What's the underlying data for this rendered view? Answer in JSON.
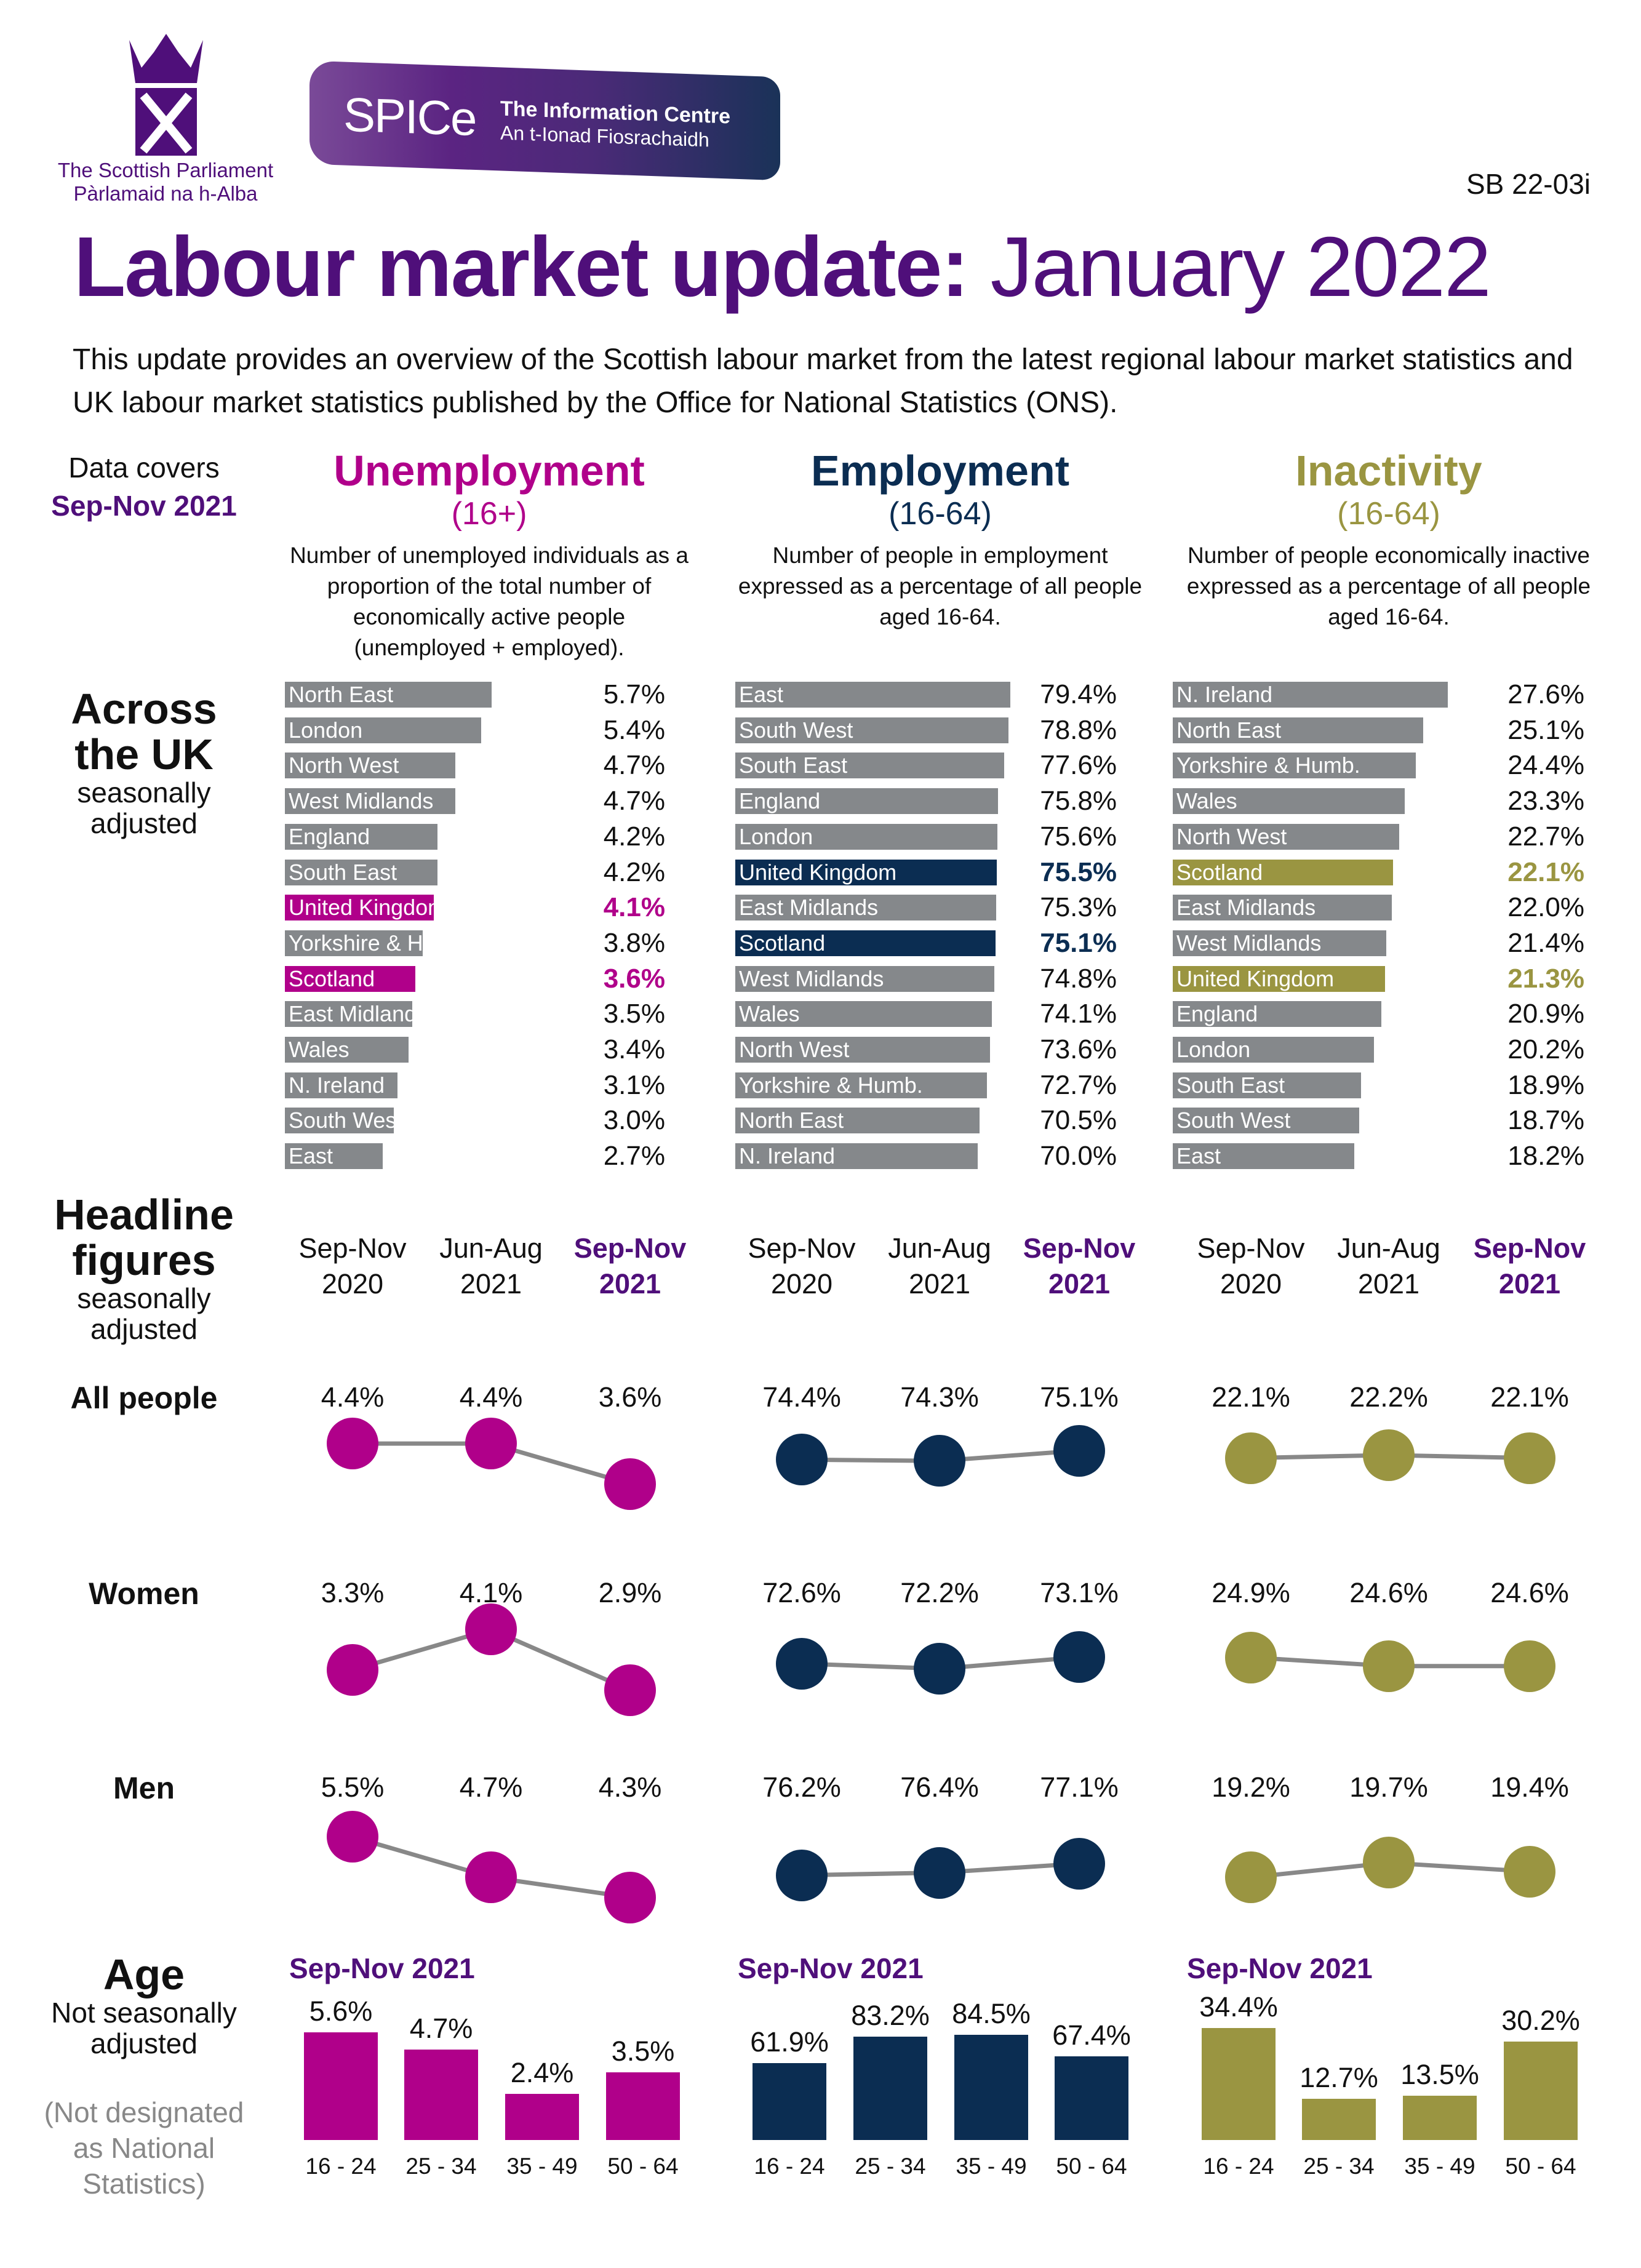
{
  "header": {
    "logo_line1": "The Scottish Parliament",
    "logo_line2": "Pàrlamaid na h-Alba",
    "spice_name": "SPICe",
    "spice_line1": "The Information Centre",
    "spice_line2": "An t-Ionad Fiosrachaidh",
    "reference": "SB 22-03i",
    "title_bold": "Labour market update:",
    "title_light": " January 2022",
    "intro": "This update provides an overview of the Scottish labour market from the latest regional labour market statistics and UK labour market statistics published by the Office for National Statistics (ONS)."
  },
  "colors": {
    "unemployment": "#b0008a",
    "employment": "#0b2d52",
    "inactivity": "#9a9541",
    "grey": "#85888b",
    "purple": "#4f0f7a"
  },
  "data_covers": {
    "label": "Data covers",
    "period": "Sep-Nov 2021"
  },
  "columns": [
    {
      "title": "Unemployment",
      "sub": "(16+)",
      "desc": "Number of unemployed individuals as a proportion of the total number of economically active people (unemployed + employed)."
    },
    {
      "title": "Employment",
      "sub": "(16-64)",
      "desc": "Number of people in employment expressed as a percentage of all people aged 16-64."
    },
    {
      "title": "Inactivity",
      "sub": "(16-64)",
      "desc": "Number of people economically inactive expressed as a percentage of all people aged 16-64."
    }
  ],
  "across": {
    "title1": "Across",
    "title2": "the UK",
    "note1": "seasonally",
    "note2": "adjusted"
  },
  "regions": [
    [
      [
        "North East",
        5.7
      ],
      [
        "London",
        5.4
      ],
      [
        "North West",
        4.7
      ],
      [
        "West Midlands",
        4.7
      ],
      [
        "England",
        4.2
      ],
      [
        "South East",
        4.2
      ],
      [
        "United Kingdom",
        4.1
      ],
      [
        "Yorkshire & Humb.",
        3.8
      ],
      [
        "Scotland",
        3.6
      ],
      [
        "East Midlands",
        3.5
      ],
      [
        "Wales",
        3.4
      ],
      [
        "N. Ireland",
        3.1
      ],
      [
        "South West",
        3.0
      ],
      [
        "East",
        2.7
      ]
    ],
    [
      [
        "East",
        79.4
      ],
      [
        "South West",
        78.8
      ],
      [
        "South East",
        77.6
      ],
      [
        "England",
        75.8
      ],
      [
        "London",
        75.6
      ],
      [
        "United Kingdom",
        75.5
      ],
      [
        "East Midlands",
        75.3
      ],
      [
        "Scotland",
        75.1
      ],
      [
        "West Midlands",
        74.8
      ],
      [
        "Wales",
        74.1
      ],
      [
        "North West",
        73.6
      ],
      [
        "Yorkshire & Humb.",
        72.7
      ],
      [
        "North East",
        70.5
      ],
      [
        "N. Ireland",
        70.0
      ]
    ],
    [
      [
        "N. Ireland",
        27.6
      ],
      [
        "North East",
        25.1
      ],
      [
        "Yorkshire & Humb.",
        24.4
      ],
      [
        "Wales",
        23.3
      ],
      [
        "North West",
        22.7
      ],
      [
        "Scotland",
        22.1
      ],
      [
        "East Midlands",
        22.0
      ],
      [
        "West Midlands",
        21.4
      ],
      [
        "United Kingdom",
        21.3
      ],
      [
        "England",
        20.9
      ],
      [
        "London",
        20.2
      ],
      [
        "South East",
        18.9
      ],
      [
        "South West",
        18.7
      ],
      [
        "East",
        18.2
      ]
    ]
  ],
  "headline": {
    "title1": "Headline",
    "title2": "figures",
    "note1": "seasonally",
    "note2": "adjusted",
    "periods": [
      [
        "Sep-Nov",
        "2020"
      ],
      [
        "Jun-Aug",
        "2021"
      ],
      [
        "Sep-Nov",
        "2021"
      ]
    ],
    "rows": [
      {
        "label": "All people",
        "values": [
          [
            4.4,
            4.4,
            3.6
          ],
          [
            74.4,
            74.3,
            75.1
          ],
          [
            22.1,
            22.2,
            22.1
          ]
        ]
      },
      {
        "label": "Women",
        "values": [
          [
            3.3,
            4.1,
            2.9
          ],
          [
            72.6,
            72.2,
            73.1
          ],
          [
            24.9,
            24.6,
            24.6
          ]
        ]
      },
      {
        "label": "Men",
        "values": [
          [
            5.5,
            4.7,
            4.3
          ],
          [
            76.2,
            76.4,
            77.1
          ],
          [
            19.2,
            19.7,
            19.4
          ]
        ]
      }
    ]
  },
  "age": {
    "title": "Age",
    "note1": "Not seasonally",
    "note2": "adjusted",
    "disc1": "(Not designated",
    "disc2": "as National",
    "disc3": "Statistics)",
    "period": "Sep-Nov 2021",
    "groups": [
      "16 - 24",
      "25 - 34",
      "35 - 49",
      "50 - 64"
    ],
    "values": [
      [
        5.6,
        4.7,
        2.4,
        3.5
      ],
      [
        61.9,
        83.2,
        84.5,
        67.4
      ],
      [
        34.4,
        12.7,
        13.5,
        30.2
      ]
    ]
  }
}
